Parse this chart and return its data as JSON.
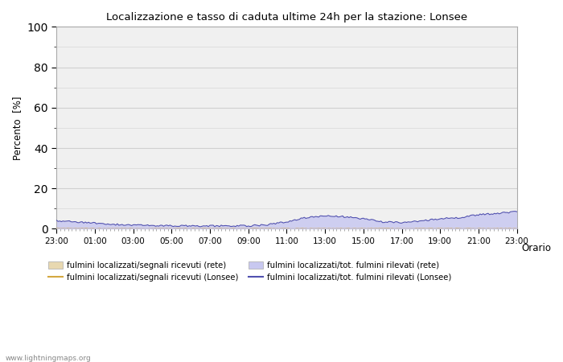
{
  "title": "Localizzazione e tasso di caduta ultime 24h per la stazione: Lonsee",
  "xlabel": "Orario",
  "ylabel": "Percento  [%]",
  "ylim": [
    0,
    100
  ],
  "yticks": [
    0,
    20,
    40,
    60,
    80,
    100
  ],
  "yminor_ticks": [
    10,
    30,
    50,
    70,
    90
  ],
  "x_labels": [
    "23:00",
    "01:00",
    "03:00",
    "05:00",
    "07:00",
    "09:00",
    "11:00",
    "13:00",
    "15:00",
    "17:00",
    "19:00",
    "21:00",
    "23:00"
  ],
  "n_points": 289,
  "background_color": "#ffffff",
  "plot_bg_color": "#f0f0f0",
  "grid_color": "#d0d0d0",
  "fill_rete_color": "#e8d8b0",
  "fill_rete_alpha": 1.0,
  "fill_lonsee_color": "#c8c8f0",
  "fill_lonsee_alpha": 0.85,
  "line_rete_color": "#d4a840",
  "line_lonsee_color": "#5050b0",
  "line_width": 0.8,
  "watermark": "www.lightningmaps.org",
  "legend_labels": [
    "fulmini localizzati/segnali ricevuti (rete)",
    "fulmini localizzati/segnali ricevuti (Lonsee)",
    "fulmini localizzati/tot. fulmini rilevati (rete)",
    "fulmini localizzati/tot. fulmini rilevati (Lonsee)"
  ],
  "figsize": [
    7.0,
    4.5
  ],
  "dpi": 100
}
